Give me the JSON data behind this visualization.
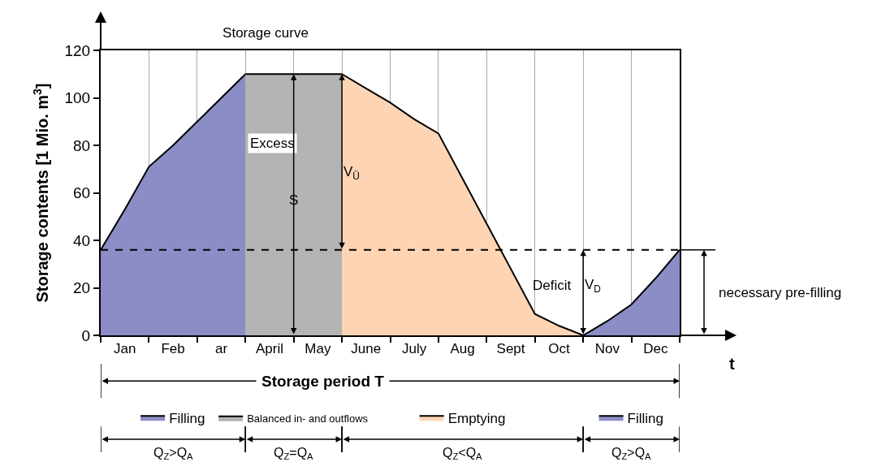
{
  "chart_data": {
    "type": "area",
    "title": "Storage curve",
    "xlabel": "t",
    "ylabel": "Storage contents [1 Mio. m$^{3}$]",
    "categories": [
      null,
      "Jan",
      null,
      "Feb",
      null,
      "ar",
      null,
      "April",
      null,
      "May",
      null,
      "June",
      null,
      "July",
      null,
      "Aug",
      null,
      "Sept",
      null,
      "Oct",
      null,
      "Nov",
      null,
      "Dec",
      null
    ],
    "ylim": [
      0,
      120
    ],
    "yticks": [
      0,
      20,
      40,
      60,
      80,
      100,
      120
    ],
    "series": [
      {
        "name": "Filling",
        "color": "#8c8cc6",
        "values": [
          36,
          53,
          71,
          80,
          90,
          100,
          110,
          null,
          null,
          null,
          null,
          null,
          null,
          null,
          null,
          null,
          null,
          null,
          null,
          null,
          null,
          null,
          null,
          null,
          null
        ]
      },
      {
        "name": "Balanced in- and outflows",
        "color": "#b4b4b4",
        "values": [
          null,
          null,
          null,
          null,
          null,
          null,
          110,
          110,
          110,
          110,
          110,
          null,
          null,
          null,
          null,
          null,
          null,
          null,
          null,
          null,
          null,
          null,
          null,
          null,
          null
        ]
      },
      {
        "name": "Emptying",
        "color": "#fdd4b4",
        "values": [
          null,
          null,
          null,
          null,
          null,
          null,
          null,
          null,
          null,
          null,
          110,
          104,
          98,
          91,
          85,
          66,
          47,
          28,
          9,
          4,
          0,
          null,
          null,
          null,
          null
        ]
      },
      {
        "name": "Filling",
        "color": "#8c8cc6",
        "values": [
          null,
          null,
          null,
          null,
          null,
          null,
          null,
          null,
          null,
          null,
          null,
          null,
          null,
          null,
          null,
          null,
          null,
          null,
          null,
          null,
          0,
          6,
          13,
          24,
          36
        ]
      }
    ],
    "ref_lines": [
      {
        "axis": "y",
        "value": 36,
        "line_style": "dashed",
        "color": "#000000"
      }
    ],
    "annotations": [
      "Excess",
      "S",
      "V$_{Ü}$",
      "Deficit",
      "V$_{D}$",
      "necessary pre-filling",
      "Storage period T",
      "Q$_{Z}$>Q$_{A}$",
      "Q$_{Z}$=Q$_{A}$",
      "Q$_{Z}$<Q$_{A}$",
      "Q$_{Z}$>Q$_{A}$"
    ],
    "grid": "x",
    "legend": "bottom"
  }
}
